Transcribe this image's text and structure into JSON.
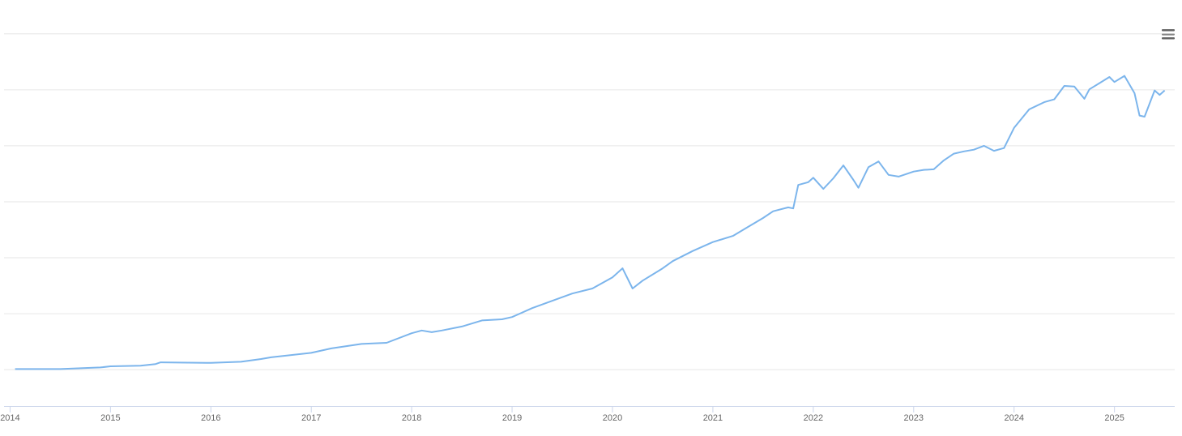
{
  "chart_data": {
    "type": "line",
    "x": [
      2014.05,
      2014.5,
      2014.9,
      2015,
      2015.3,
      2015.45,
      2015.5,
      2016,
      2016.3,
      2016.5,
      2016.6,
      2017,
      2017.2,
      2017.5,
      2017.75,
      2018,
      2018.1,
      2018.2,
      2018.3,
      2018.5,
      2018.7,
      2018.9,
      2019,
      2019.2,
      2019.4,
      2019.6,
      2019.8,
      2020,
      2020.1,
      2020.2,
      2020.3,
      2020.5,
      2020.6,
      2020.8,
      2021,
      2021.2,
      2021.35,
      2021.5,
      2021.6,
      2021.75,
      2021.8,
      2021.85,
      2021.95,
      2022,
      2022.1,
      2022.2,
      2022.3,
      2022.4,
      2022.45,
      2022.55,
      2022.65,
      2022.75,
      2022.85,
      2023,
      2023.1,
      2023.2,
      2023.3,
      2023.4,
      2023.5,
      2023.6,
      2023.7,
      2023.8,
      2023.9,
      2024,
      2024.15,
      2024.3,
      2024.4,
      2024.5,
      2024.6,
      2024.7,
      2024.75,
      2024.85,
      2024.95,
      2025,
      2025.1,
      2025.2,
      2025.25,
      2025.3,
      2025.4,
      2025.45,
      2025.5
    ],
    "series": [
      {
        "color": "#7cb5ec",
        "values": [
          0.01,
          0.01,
          0.04,
          0.06,
          0.07,
          0.1,
          0.13,
          0.12,
          0.14,
          0.19,
          0.22,
          0.3,
          0.38,
          0.46,
          0.48,
          0.65,
          0.7,
          0.67,
          0.7,
          0.77,
          0.88,
          0.9,
          0.94,
          1.1,
          1.23,
          1.36,
          1.45,
          1.65,
          1.81,
          1.45,
          1.59,
          1.81,
          1.94,
          2.12,
          2.28,
          2.39,
          2.55,
          2.71,
          2.83,
          2.9,
          2.88,
          3.3,
          3.35,
          3.43,
          3.23,
          3.42,
          3.65,
          3.39,
          3.25,
          3.62,
          3.72,
          3.48,
          3.45,
          3.54,
          3.57,
          3.58,
          3.74,
          3.86,
          3.9,
          3.93,
          4.0,
          3.91,
          3.96,
          4.32,
          4.65,
          4.78,
          4.83,
          5.07,
          5.06,
          4.84,
          5.01,
          5.12,
          5.23,
          5.14,
          5.25,
          4.94,
          4.54,
          4.52,
          4.99,
          4.91,
          4.99
        ]
      }
    ],
    "xlim": [
      2013.94,
      2025.6
    ],
    "xticks": [
      2014,
      2015,
      2016,
      2017,
      2018,
      2019,
      2020,
      2021,
      2022,
      2023,
      2024,
      2025
    ],
    "ylim": [
      -0.65,
      6.2
    ],
    "grid_lines": [
      0,
      1,
      2,
      3,
      4,
      5,
      6
    ]
  }
}
